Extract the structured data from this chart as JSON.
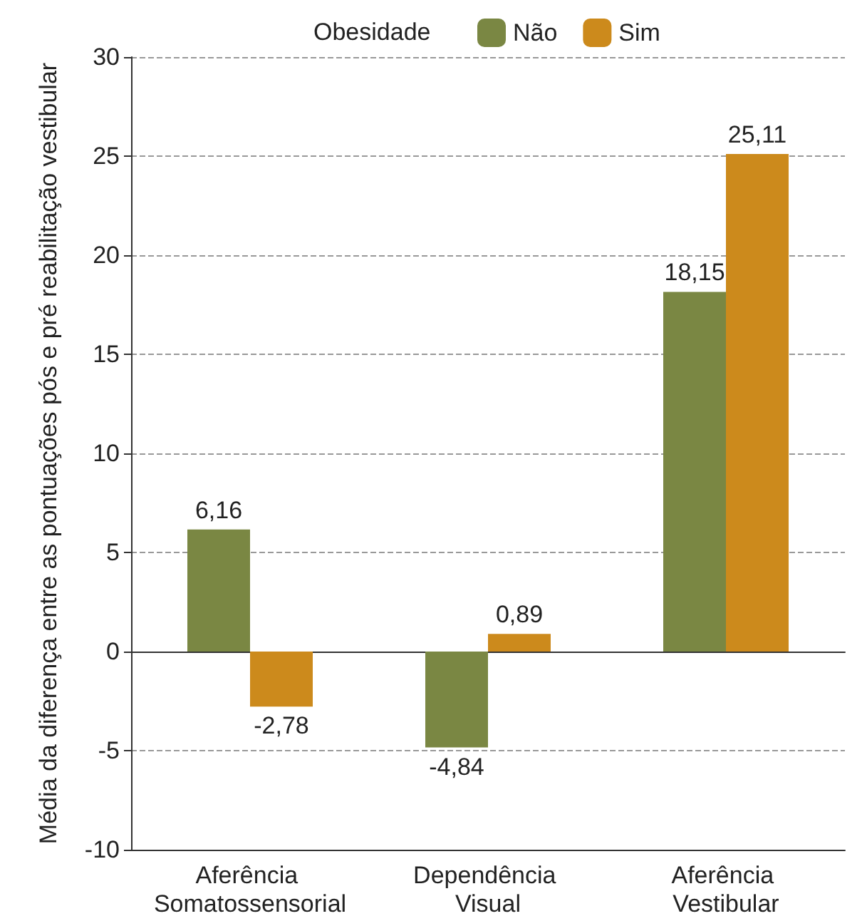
{
  "chart_data": {
    "type": "bar",
    "ylabel": "Média da diferença entre as pontuações pós e pré reabilitação vestibular",
    "legend_title": "Obesidade",
    "categories": [
      "Aferência Somatossensorial",
      "Dependência Visual",
      "Aferência Vestibular"
    ],
    "series": [
      {
        "name": "Não",
        "color": "#7a8743",
        "values": [
          6.16,
          -4.84,
          18.15
        ],
        "value_labels": [
          "6,16",
          "-4,84",
          "18,15"
        ]
      },
      {
        "name": "Sim",
        "color": "#cc8a1c",
        "values": [
          -2.78,
          0.89,
          25.11
        ],
        "value_labels": [
          "-2,78",
          "0,89",
          "25,11"
        ]
      }
    ],
    "ylim": [
      -10,
      30
    ],
    "yticks": [
      -10,
      -5,
      0,
      5,
      10,
      15,
      20,
      25,
      30
    ],
    "grid": "y",
    "legend": "top"
  }
}
